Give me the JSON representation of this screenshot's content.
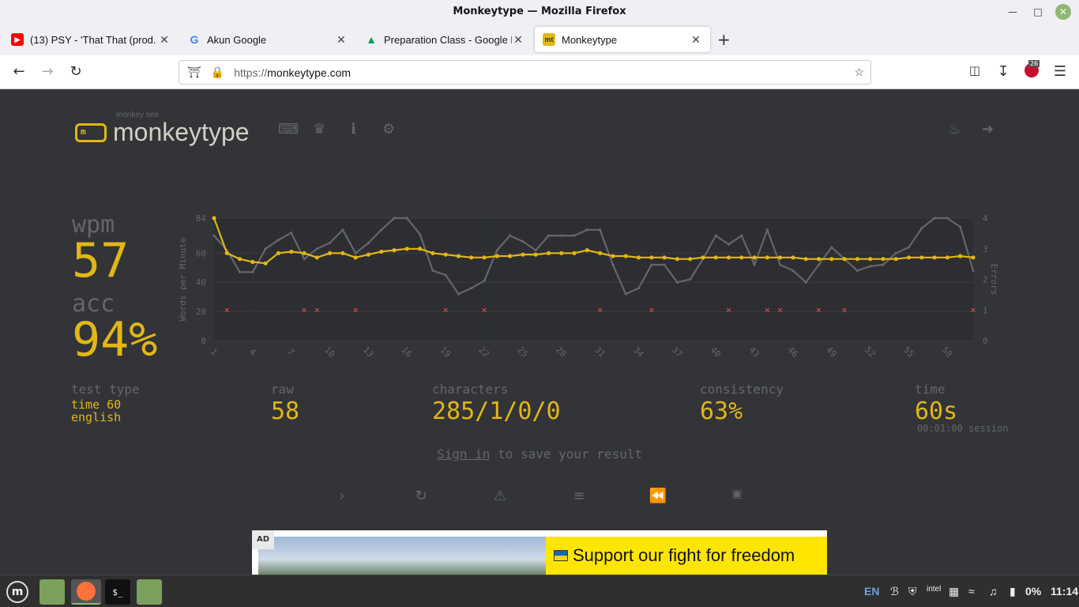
{
  "window": {
    "title": "Monkeytype — Mozilla Firefox"
  },
  "tabs": [
    {
      "label": "(13) PSY - 'That That (prod. &",
      "favicon": "youtube-icon"
    },
    {
      "label": "Akun Google",
      "favicon": "google-icon"
    },
    {
      "label": "Preparation Class - Google D",
      "favicon": "google-drive-icon"
    },
    {
      "label": "Monkeytype",
      "favicon": "monkeytype-icon",
      "active": true
    }
  ],
  "nav": {
    "url_prefix": "https://",
    "url_host": "monkeytype.com",
    "abp_count": "26"
  },
  "header": {
    "logo_text": "monkeytype",
    "logo_sub": "monkey see",
    "logo_mark": "m"
  },
  "results": {
    "wpm_label": "wpm",
    "wpm": "57",
    "acc_label": "acc",
    "acc": "94%",
    "test_type_label": "test type",
    "test_type_mode": "time 60",
    "test_type_lang": "english",
    "raw_label": "raw",
    "raw": "58",
    "characters_label": "characters",
    "characters": "285/1/0/0",
    "consistency_label": "consistency",
    "consistency": "63%",
    "time_label": "time",
    "time": "60s",
    "session": "00:01:00 session"
  },
  "signin": {
    "link": "Sign in",
    "rest": " to save your result"
  },
  "ad": {
    "label": "AD",
    "text": "Support our fight for freedom"
  },
  "taskbar": {
    "lang": "EN",
    "battery": "0%",
    "clock": "11:14"
  },
  "chart_data": {
    "type": "line",
    "ylabel": "Words per Minute",
    "y2label": "Errors",
    "ylim": [
      0,
      84
    ],
    "y2lim": [
      0,
      4
    ],
    "yticks": [
      0,
      20,
      40,
      60,
      84
    ],
    "y2ticks": [
      0,
      1,
      2,
      3,
      4
    ],
    "xticks": [
      1,
      4,
      7,
      10,
      13,
      16,
      19,
      22,
      25,
      28,
      31,
      34,
      37,
      40,
      43,
      46,
      49,
      52,
      55,
      58
    ],
    "xlim": [
      1,
      60
    ],
    "grid": true,
    "series": [
      {
        "name": "raw",
        "color": "#646669",
        "values": [
          72,
          62,
          47,
          47,
          63,
          69,
          74,
          56,
          63,
          67,
          76,
          60,
          67,
          76,
          84,
          84,
          73,
          48,
          45,
          32,
          36,
          41,
          62,
          72,
          68,
          62,
          72,
          72,
          72,
          76,
          76,
          52,
          32,
          36,
          52,
          52,
          40,
          42,
          56,
          72,
          66,
          72,
          52,
          76,
          52,
          48,
          40,
          52,
          64,
          56,
          48,
          51,
          52,
          60,
          64,
          77,
          84,
          84,
          78,
          48
        ]
      },
      {
        "name": "wpm",
        "color": "#e2b714",
        "values": [
          84,
          60,
          56,
          54,
          53,
          60,
          61,
          60,
          57,
          60,
          60,
          57,
          59,
          61,
          62,
          63,
          63,
          60,
          59,
          58,
          57,
          57,
          58,
          58,
          59,
          59,
          60,
          60,
          60,
          62,
          60,
          58,
          58,
          57,
          57,
          57,
          56,
          56,
          57,
          57,
          57,
          57,
          57,
          57,
          57,
          57,
          56,
          56,
          56,
          56,
          56,
          56,
          56,
          56,
          57,
          57,
          57,
          57,
          58,
          57
        ]
      }
    ],
    "errors": [
      2,
      8,
      9,
      12,
      19,
      22,
      31,
      35,
      41,
      44,
      45,
      48,
      50,
      60
    ]
  }
}
